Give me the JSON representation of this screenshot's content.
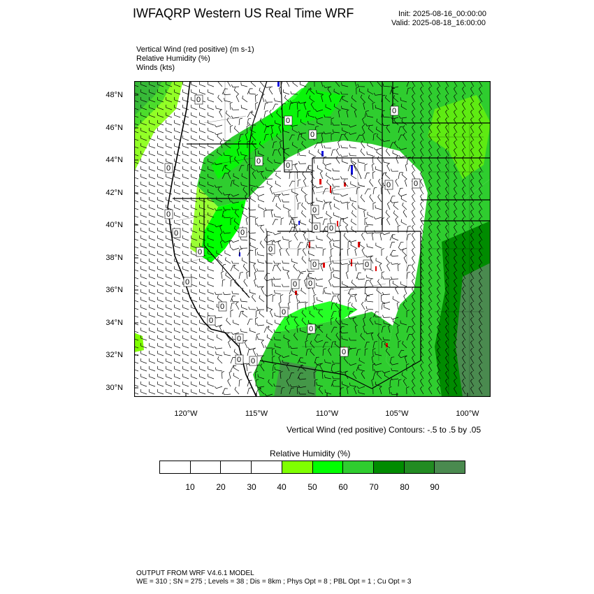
{
  "header": {
    "title": "IWFAQRP Western US Real Time WRF",
    "init": "Init: 2025-08-16_00:00:00",
    "valid": "Valid: 2025-08-18_16:00:00"
  },
  "fields": [
    "Vertical Wind (red positive)   (m s-1)",
    "Relative Humidity   (%)",
    "Winds   (kts)"
  ],
  "map": {
    "lat_labels": [
      "48°N",
      "46°N",
      "44°N",
      "42°N",
      "40°N",
      "38°N",
      "36°N",
      "34°N",
      "32°N",
      "30°N"
    ],
    "lon_labels": [
      "120°W",
      "115°W",
      "110°W",
      "105°W",
      "100°W"
    ],
    "contour_label": "0",
    "colors": {
      "land": "#ffffff",
      "rh_40_50": "#7fff00",
      "rh_50_60": "#00ff00",
      "rh_60_70": "#2fcd2f",
      "rh_70_80": "#008b00",
      "rh_80_90": "#228b22",
      "rh_90_plus": "#4a8a4f",
      "positive_vertical_wind": "#e00000",
      "negative_vertical_wind": "#1010e0"
    }
  },
  "contour_note": "Vertical Wind (red positive) Contours: -.5 to .5 by .05",
  "colorbar": {
    "title": "Relative Humidity   (%)",
    "colors": [
      "#ffffff",
      "#ffffff",
      "#ffffff",
      "#ffffff",
      "#7fff00",
      "#00ff00",
      "#2fcd2f",
      "#008b00",
      "#228b22",
      "#4a8a4f"
    ],
    "ticks": [
      "10",
      "20",
      "30",
      "40",
      "50",
      "60",
      "70",
      "80",
      "90"
    ]
  },
  "footer": {
    "line1": "OUTPUT FROM WRF V4.6.1 MODEL",
    "line2": "WE = 310 ; SN = 275 ; Levels = 38 ; Dis = 8km ; Phys Opt = 8 ; PBL Opt = 1 ; Cu Opt = 3"
  }
}
